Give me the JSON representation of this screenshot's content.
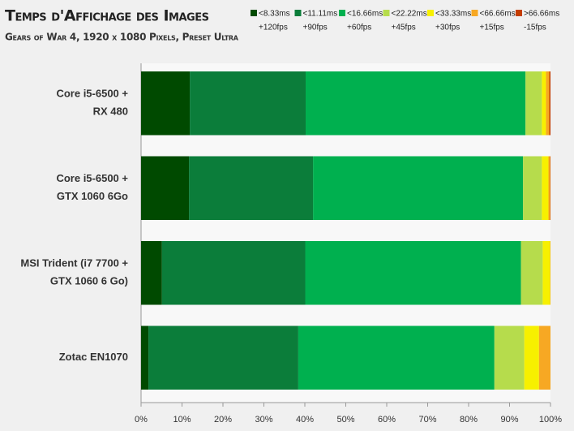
{
  "chart_data": {
    "type": "stacked-barh",
    "title": "Temps d'Affichage des Images",
    "subtitle": "Gears of War 4, 1920 x 1080 Pixels, Preset Ultra",
    "categories": [
      [
        "Core i5-6500 +",
        "RX 480"
      ],
      [
        "Core i5-6500 +",
        "GTX 1060 6Go"
      ],
      [
        "MSI Trident (i7 7700 +",
        "GTX 1060 6 Go)"
      ],
      [
        "Zotac EN1070"
      ]
    ],
    "series": [
      {
        "name": "<8.33ms",
        "sublabel": "+120fps",
        "color": "#004a00",
        "values": [
          11.9,
          11.7,
          5.1,
          1.8
        ]
      },
      {
        "name": "<11.11ms",
        "sublabel": "+90fps",
        "color": "#0b7d3a",
        "values": [
          28.3,
          30.3,
          35.0,
          36.6
        ]
      },
      {
        "name": "<16.66ms",
        "sublabel": "+60fps",
        "color": "#00b04f",
        "values": [
          53.7,
          51.3,
          52.7,
          47.9
        ]
      },
      {
        "name": "<22.22ms",
        "sublabel": "+45fps",
        "color": "#b6dc4c",
        "values": [
          4.0,
          4.6,
          5.3,
          7.3
        ]
      },
      {
        "name": "<33.33ms",
        "sublabel": "+30fps",
        "color": "#f7f000",
        "values": [
          1.0,
          1.6,
          1.8,
          3.6
        ]
      },
      {
        "name": "<66.66ms",
        "sublabel": "+15fps",
        "color": "#f7a823",
        "values": [
          0.8,
          0.4,
          0.1,
          2.8
        ]
      },
      {
        "name": ">66.66ms",
        "sublabel": "-15fps",
        "color": "#c43e00",
        "values": [
          0.3,
          0.1,
          0,
          0
        ]
      }
    ],
    "xlim": [
      0,
      100
    ],
    "xticks": [
      {
        "value": 0,
        "label": "0%"
      },
      {
        "value": 10,
        "label": "10%"
      },
      {
        "value": 20,
        "label": "20%"
      },
      {
        "value": 30,
        "label": "30%"
      },
      {
        "value": 40,
        "label": "40%"
      },
      {
        "value": 50,
        "label": "50%"
      },
      {
        "value": 60,
        "label": "60%"
      },
      {
        "value": 70,
        "label": "70%"
      },
      {
        "value": 80,
        "label": "80%"
      },
      {
        "value": 90,
        "label": "90%"
      },
      {
        "value": 100,
        "label": "100%"
      }
    ]
  }
}
